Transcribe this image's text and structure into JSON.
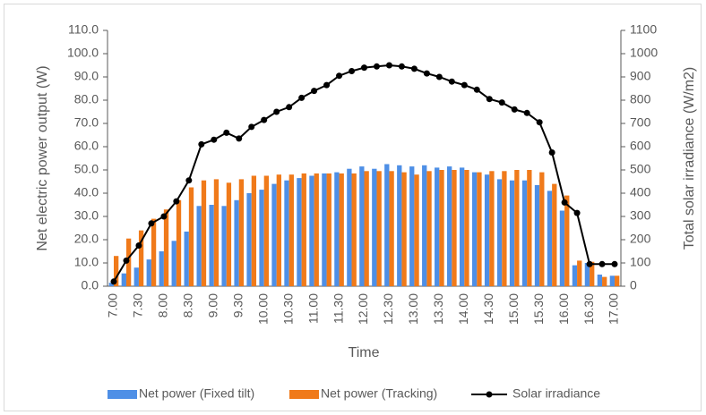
{
  "chart_data": {
    "type": "bar_line",
    "y_label": "Net electric power output (W)",
    "y2_label": "Total solar irradiance (W/m2)",
    "x_label": "Time",
    "categories": [
      "7.00",
      null,
      "7.30",
      null,
      "8.00",
      null,
      "8.30",
      null,
      "9.00",
      null,
      "9.30",
      null,
      "10.00",
      null,
      "10.30",
      null,
      "11.00",
      null,
      "11.30",
      null,
      "12.00",
      null,
      "12.30",
      null,
      "13.00",
      null,
      "13.30",
      null,
      "14.00",
      null,
      "14.30",
      null,
      "15.00",
      null,
      "15.30",
      null,
      "16.00",
      null,
      "16.30",
      null,
      "17.00"
    ],
    "series": [
      {
        "name": "Net power (Fixed tilt)",
        "type": "bar",
        "color": "#4e8fe6",
        "values": [
          1.5,
          5.5,
          8,
          11.5,
          15,
          19.5,
          23.5,
          34.5,
          35,
          34.5,
          37,
          40,
          41.5,
          44,
          45.5,
          46.5,
          47.5,
          48.5,
          49,
          50.5,
          51.5,
          50.5,
          52.5,
          52,
          51.5,
          52,
          51,
          51.5,
          51,
          49,
          48,
          46,
          45.5,
          45.5,
          43.5,
          41,
          32.5,
          9,
          10,
          5,
          4.5
        ]
      },
      {
        "name": "Net power (Tracking)",
        "type": "bar",
        "color": "#f07a1a",
        "values": [
          13,
          20.5,
          24,
          29,
          33,
          37,
          42.5,
          45.5,
          46,
          44.5,
          46,
          47.5,
          47.5,
          48,
          48,
          48.5,
          48.5,
          48.5,
          48.5,
          48.5,
          49.5,
          49.5,
          49.5,
          49,
          48,
          49.5,
          50,
          50,
          50,
          49,
          49.5,
          49.5,
          50,
          50,
          49,
          44,
          39,
          11,
          10.5,
          4,
          4.5
        ]
      },
      {
        "name": "Solar irradiance",
        "type": "line",
        "axis": "y2",
        "color": "#000000",
        "values": [
          20,
          110,
          175,
          270,
          300,
          365,
          455,
          610,
          630,
          660,
          635,
          685,
          715,
          750,
          770,
          810,
          840,
          865,
          905,
          925,
          940,
          945,
          950,
          945,
          935,
          915,
          900,
          880,
          865,
          845,
          805,
          790,
          760,
          745,
          705,
          575,
          360,
          315,
          95,
          95,
          95
        ]
      }
    ],
    "ylim": [
      0,
      110
    ],
    "yticks": [
      {
        "value": 0,
        "label": "0.0"
      },
      {
        "value": 10,
        "label": "10.0"
      },
      {
        "value": 20,
        "label": "20.0"
      },
      {
        "value": 30,
        "label": "30.0"
      },
      {
        "value": 40,
        "label": "40.0"
      },
      {
        "value": 50,
        "label": "50.0"
      },
      {
        "value": 60,
        "label": "60.0"
      },
      {
        "value": 70,
        "label": "70.0"
      },
      {
        "value": 80,
        "label": "80.0"
      },
      {
        "value": 90,
        "label": "90.0"
      },
      {
        "value": 100,
        "label": "100.0"
      },
      {
        "value": 110,
        "label": "110.0"
      }
    ],
    "y2lim": [
      0,
      1100
    ],
    "y2ticks": [
      0,
      100,
      200,
      300,
      400,
      500,
      600,
      700,
      800,
      900,
      1000,
      1100
    ],
    "legend": "bottom"
  }
}
